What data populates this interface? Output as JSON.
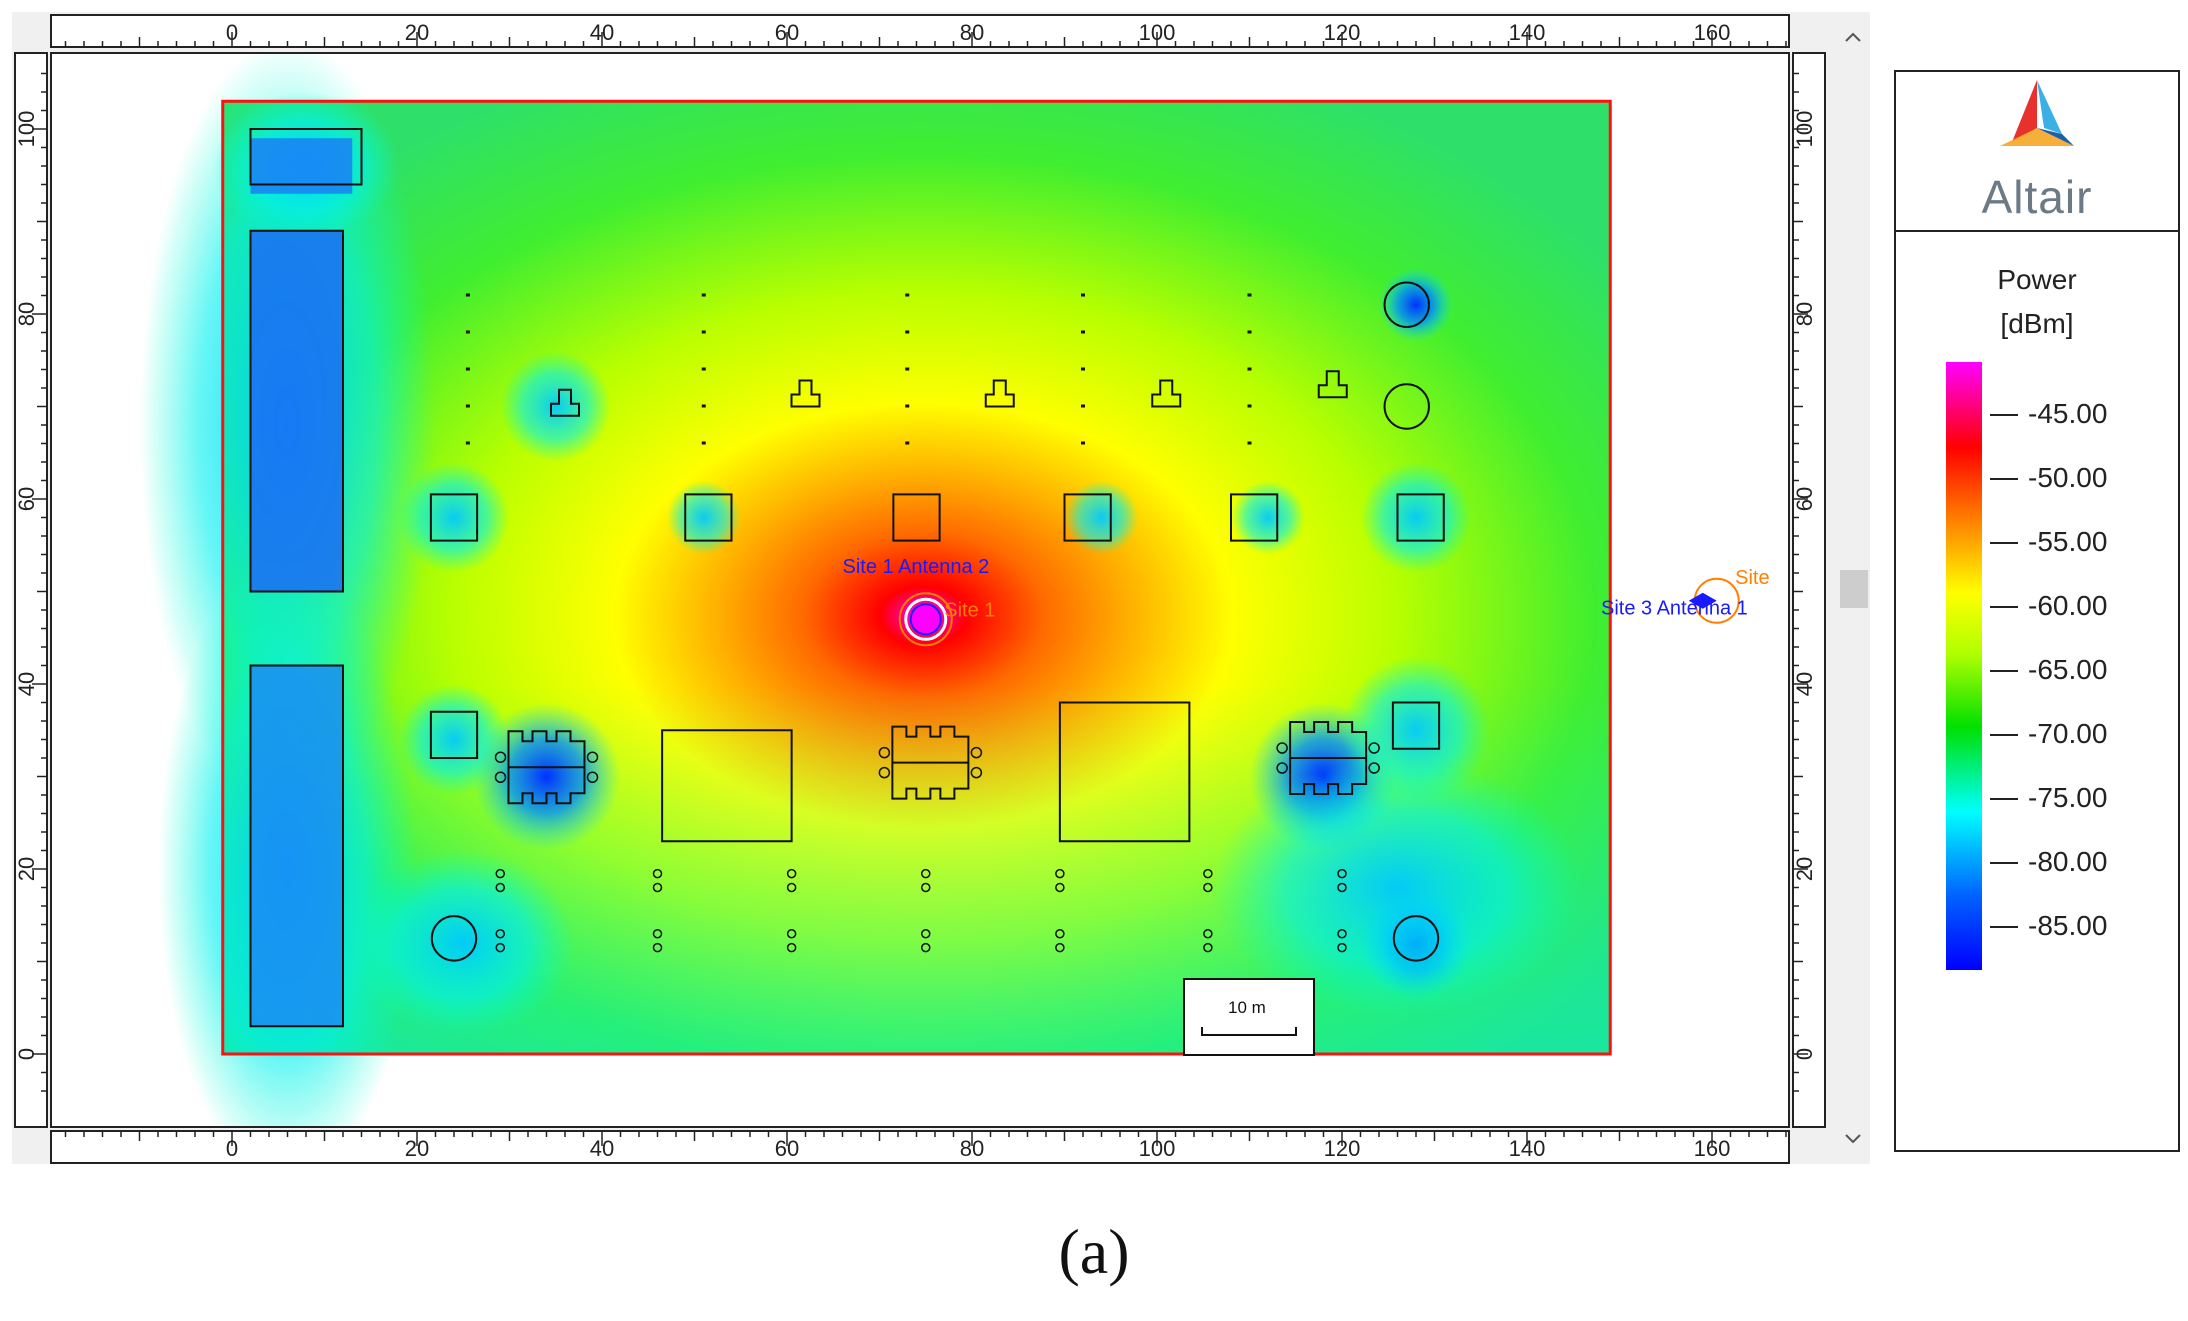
{
  "ruler": {
    "ticks": [
      "0",
      "20",
      "40",
      "60",
      "80",
      "100",
      "120",
      "140",
      "160"
    ],
    "vticks": [
      "100",
      "80",
      "60",
      "40",
      "20",
      "0"
    ]
  },
  "map": {
    "labels": {
      "site1_antenna2": "Site  1 Antenna 2",
      "site1": "Site  1",
      "site3_antenna1": "Site  3 Antenna 1",
      "site_right": "Site"
    },
    "scale_bar": "10 m"
  },
  "legend": {
    "brand": "Altair",
    "title": "Power",
    "unit": "[dBm]",
    "ticks": [
      "-45.00",
      "-50.00",
      "-55.00",
      "-60.00",
      "-65.00",
      "-70.00",
      "-75.00",
      "-80.00",
      "-85.00"
    ],
    "colors": [
      "#ff00ff",
      "#ff0000",
      "#ff8000",
      "#ffff00",
      "#b0ff00",
      "#00e000",
      "#00ffff",
      "#0060ff",
      "#0000ff"
    ]
  },
  "caption": "(a)",
  "scroll": {
    "up": "^",
    "down": "v"
  }
}
